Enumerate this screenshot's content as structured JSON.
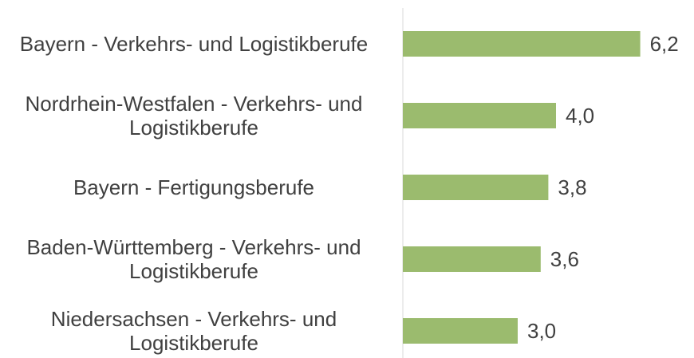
{
  "chart_data": {
    "type": "hbar",
    "categories": [
      "Bayern - Verkehrs- und Logistikberufe",
      "Nordrhein-Westfalen - Verkehrs- und Logistikberufe",
      "Bayern - Fertigungsberufe",
      "Baden-Württemberg - Verkehrs- und Logistikberufe",
      "Niedersachsen - Verkehrs- und Logistikberufe"
    ],
    "values": [
      6.2,
      4.0,
      3.8,
      3.6,
      3.0
    ],
    "value_labels": [
      "6,2",
      "4,0",
      "3,8",
      "3,6",
      "3,0"
    ],
    "color": "#9bbb6e",
    "xlim": [
      0,
      7
    ]
  }
}
